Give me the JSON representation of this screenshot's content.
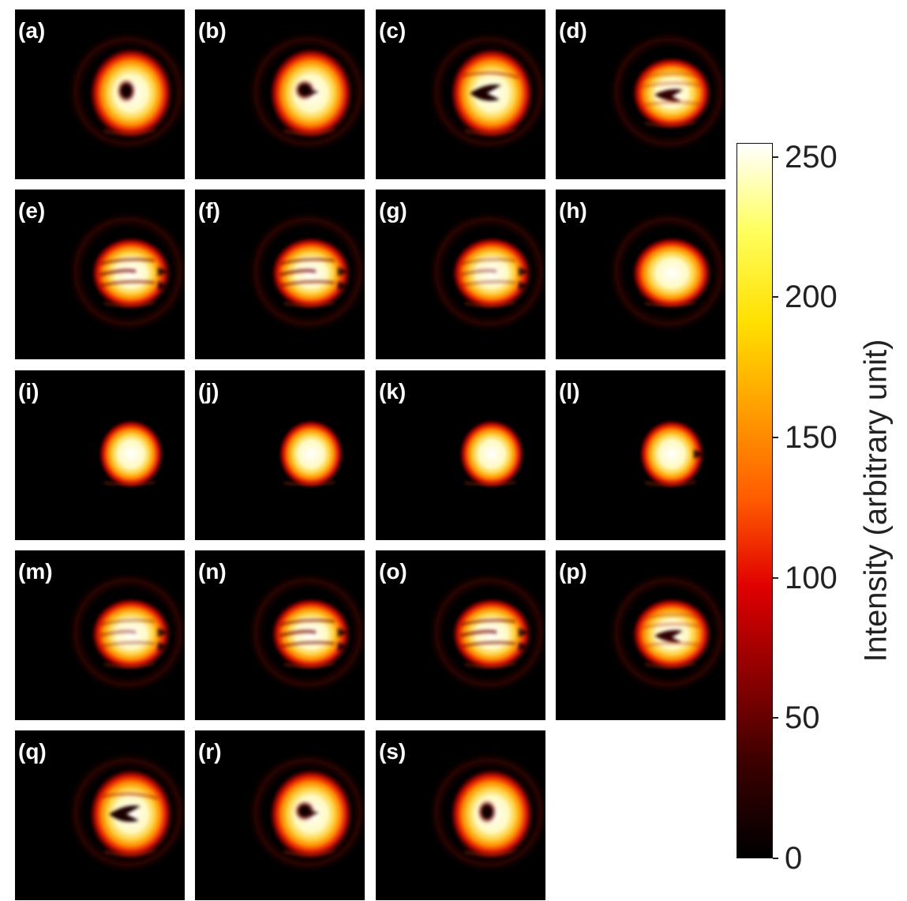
{
  "colors": {
    "background": "#ffffff",
    "panel_bg": "#000000",
    "colormap": [
      "#000000",
      "#3a0000",
      "#8a0000",
      "#e00000",
      "#ff5a00",
      "#ffa000",
      "#ffe000",
      "#ffff60",
      "#ffffff"
    ]
  },
  "colorbar": {
    "title": "Intensity (arbitrary unit)",
    "min": 0,
    "max": 255,
    "ticks": [
      {
        "label": "0",
        "value": 0
      },
      {
        "label": "50",
        "value": 50
      },
      {
        "label": "100",
        "value": 100
      },
      {
        "label": "150",
        "value": 150
      },
      {
        "label": "200",
        "value": 200
      },
      {
        "label": "250",
        "value": 250
      }
    ]
  },
  "panels": [
    {
      "label": "(a)",
      "pattern": "donut",
      "hole": "round"
    },
    {
      "label": "(b)",
      "pattern": "donut",
      "hole": "round-notch"
    },
    {
      "label": "(c)",
      "pattern": "donut",
      "hole": "wedge"
    },
    {
      "label": "(d)",
      "pattern": "lobed",
      "hole": "wedge-small"
    },
    {
      "label": "(e)",
      "pattern": "lobed",
      "hole": "streaks"
    },
    {
      "label": "(f)",
      "pattern": "lobed",
      "hole": "streaks"
    },
    {
      "label": "(g)",
      "pattern": "lobed",
      "hole": "faint-streaks"
    },
    {
      "label": "(h)",
      "pattern": "lobed",
      "hole": "none"
    },
    {
      "label": "(i)",
      "pattern": "spot",
      "hole": "none"
    },
    {
      "label": "(j)",
      "pattern": "spot",
      "hole": "none"
    },
    {
      "label": "(k)",
      "pattern": "spot",
      "hole": "none"
    },
    {
      "label": "(l)",
      "pattern": "spot",
      "hole": "notch"
    },
    {
      "label": "(m)",
      "pattern": "lobed",
      "hole": "faint-streaks"
    },
    {
      "label": "(n)",
      "pattern": "lobed",
      "hole": "streaks"
    },
    {
      "label": "(o)",
      "pattern": "lobed",
      "hole": "streaks"
    },
    {
      "label": "(p)",
      "pattern": "lobed",
      "hole": "wedge-small"
    },
    {
      "label": "(q)",
      "pattern": "donut",
      "hole": "wedge"
    },
    {
      "label": "(r)",
      "pattern": "donut",
      "hole": "round-notch"
    },
    {
      "label": "(s)",
      "pattern": "donut",
      "hole": "round"
    }
  ]
}
